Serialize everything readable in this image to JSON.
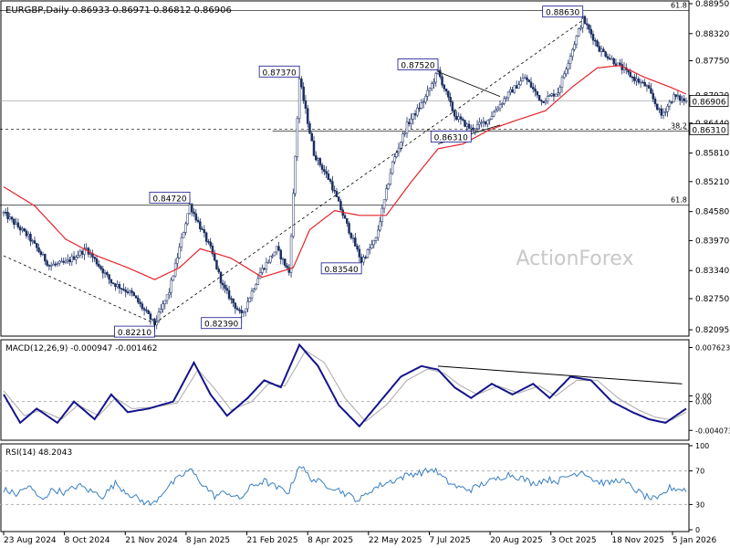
{
  "colors": {
    "background": "#ffffff",
    "frame": "#000000",
    "candle": "#1c2f63",
    "ma": "#e3242b",
    "macd": "#14148c",
    "signal": "#a9a9a9",
    "rsi": "#3a7fc1",
    "grid": "#b0b0b0",
    "label_bg": "#ffffff",
    "watermark": "#c8c8c8"
  },
  "chart_data": [
    {
      "type": "candlestick",
      "panel": "price",
      "header": "EURGBP,Daily  0.86933 0.86971 0.86812 0.86906",
      "watermark": "ActionForex",
      "ylim": [
        0.8202,
        0.8895
      ],
      "y_ticks": [
        "0.88950",
        "0.88320",
        "0.87750",
        "0.87020",
        "0.86440",
        "0.85810",
        "0.85210",
        "0.84580",
        "0.83970",
        "0.83340",
        "0.82750",
        "0.82095"
      ],
      "x_ticks": [
        "23 Aug 2024",
        "8 Oct 2024",
        "21 Nov 2024",
        "8 Jan 2025",
        "21 Feb 2025",
        "8 Apr 2025",
        "22 May 2025",
        "7 Jul 2025",
        "20 Aug 2025",
        "3 Oct 2025",
        "18 Nov 2025",
        "5 Jan 2026"
      ],
      "current_price_tag": "0.86906",
      "current_price": 0.86906,
      "level_tag": "0.86310",
      "level_price": 0.8631,
      "fib_levels": [
        {
          "label": "61.8",
          "price": 0.8881
        },
        {
          "label": "38.2",
          "price": 0.8627
        },
        {
          "label": "61.8",
          "price": 0.8472
        }
      ],
      "annotations": [
        {
          "text": "0.82210",
          "bar": 73,
          "price": 0.8221
        },
        {
          "text": "0.84720",
          "bar": 90,
          "price": 0.8472
        },
        {
          "text": "0.82390",
          "bar": 115,
          "price": 0.8239
        },
        {
          "text": "0.87370",
          "bar": 143,
          "price": 0.8737
        },
        {
          "text": "0.83540",
          "bar": 173,
          "price": 0.8354
        },
        {
          "text": "0.87520",
          "bar": 210,
          "price": 0.8752
        },
        {
          "text": "0.86310",
          "bar": 226,
          "price": 0.8631
        },
        {
          "text": "0.88630",
          "bar": 280,
          "price": 0.8863
        }
      ],
      "price_path": [
        [
          0,
          0.8455
        ],
        [
          12,
          0.8405
        ],
        [
          22,
          0.8345
        ],
        [
          30,
          0.835
        ],
        [
          40,
          0.838
        ],
        [
          52,
          0.831
        ],
        [
          62,
          0.8285
        ],
        [
          73,
          0.8221
        ],
        [
          80,
          0.829
        ],
        [
          90,
          0.8472
        ],
        [
          100,
          0.838
        ],
        [
          106,
          0.83
        ],
        [
          115,
          0.8239
        ],
        [
          124,
          0.833
        ],
        [
          132,
          0.838
        ],
        [
          138,
          0.833
        ],
        [
          143,
          0.8737
        ],
        [
          150,
          0.858
        ],
        [
          158,
          0.852
        ],
        [
          165,
          0.844
        ],
        [
          173,
          0.8354
        ],
        [
          180,
          0.84
        ],
        [
          188,
          0.856
        ],
        [
          195,
          0.864
        ],
        [
          203,
          0.869
        ],
        [
          210,
          0.8752
        ],
        [
          218,
          0.866
        ],
        [
          226,
          0.8631
        ],
        [
          234,
          0.865
        ],
        [
          243,
          0.87
        ],
        [
          252,
          0.874
        ],
        [
          260,
          0.869
        ],
        [
          268,
          0.871
        ],
        [
          275,
          0.88
        ],
        [
          280,
          0.8863
        ],
        [
          288,
          0.88
        ],
        [
          296,
          0.877
        ],
        [
          304,
          0.874
        ],
        [
          311,
          0.872
        ],
        [
          318,
          0.866
        ],
        [
          324,
          0.87
        ],
        [
          330,
          0.869
        ]
      ],
      "ma_path": [
        [
          0,
          0.851
        ],
        [
          15,
          0.847
        ],
        [
          30,
          0.84
        ],
        [
          45,
          0.8365
        ],
        [
          60,
          0.834
        ],
        [
          73,
          0.8315
        ],
        [
          85,
          0.834
        ],
        [
          95,
          0.838
        ],
        [
          110,
          0.836
        ],
        [
          125,
          0.832
        ],
        [
          140,
          0.834
        ],
        [
          148,
          0.842
        ],
        [
          160,
          0.846
        ],
        [
          172,
          0.845
        ],
        [
          185,
          0.845
        ],
        [
          197,
          0.852
        ],
        [
          210,
          0.859
        ],
        [
          222,
          0.86
        ],
        [
          235,
          0.863
        ],
        [
          248,
          0.865
        ],
        [
          262,
          0.867
        ],
        [
          275,
          0.872
        ],
        [
          287,
          0.876
        ],
        [
          298,
          0.8765
        ],
        [
          310,
          0.874
        ],
        [
          322,
          0.872
        ],
        [
          330,
          0.8705
        ]
      ],
      "trendlines": [
        {
          "from": [
            0,
            0.8365
          ],
          "to": [
            73,
            0.8223
          ]
        },
        {
          "from": [
            73,
            0.8223
          ],
          "to": [
            280,
            0.886
          ]
        },
        {
          "from": [
            210,
            0.8752
          ],
          "to": [
            240,
            0.87
          ]
        },
        {
          "from": [
            210,
            0.86
          ],
          "to": [
            240,
            0.864
          ]
        }
      ]
    },
    {
      "type": "line",
      "panel": "macd",
      "title": "MACD(12,26,9) -0.000947 -0.001462",
      "ylim": [
        -0.0052,
        0.0082
      ],
      "y_ticks": [
        "0.007623",
        "0.00",
        "0.00",
        "-0.004073"
      ],
      "zero": 0.0,
      "macd_path": [
        [
          0,
          0.001
        ],
        [
          8,
          -0.003
        ],
        [
          16,
          -0.001
        ],
        [
          26,
          -0.003
        ],
        [
          34,
          0.0
        ],
        [
          44,
          -0.0025
        ],
        [
          52,
          0.001
        ],
        [
          60,
          -0.0015
        ],
        [
          70,
          -0.001
        ],
        [
          82,
          0.0
        ],
        [
          92,
          0.0055
        ],
        [
          100,
          0.001
        ],
        [
          108,
          -0.002
        ],
        [
          118,
          0.0005
        ],
        [
          126,
          0.003
        ],
        [
          134,
          0.002
        ],
        [
          143,
          0.008
        ],
        [
          152,
          0.005
        ],
        [
          162,
          -0.0005
        ],
        [
          172,
          -0.0035
        ],
        [
          182,
          0.0
        ],
        [
          192,
          0.0035
        ],
        [
          202,
          0.005
        ],
        [
          210,
          0.0045
        ],
        [
          218,
          0.002
        ],
        [
          226,
          0.0005
        ],
        [
          236,
          0.0025
        ],
        [
          246,
          0.001
        ],
        [
          256,
          0.0025
        ],
        [
          264,
          0.0005
        ],
        [
          274,
          0.0035
        ],
        [
          284,
          0.003
        ],
        [
          294,
          0.0
        ],
        [
          304,
          -0.0015
        ],
        [
          312,
          -0.0025
        ],
        [
          320,
          -0.003
        ],
        [
          330,
          -0.001
        ]
      ],
      "signal_path": [
        [
          0,
          0.0015
        ],
        [
          10,
          -0.002
        ],
        [
          18,
          -0.0012
        ],
        [
          28,
          -0.0025
        ],
        [
          36,
          -0.0005
        ],
        [
          46,
          -0.002
        ],
        [
          54,
          0.0005
        ],
        [
          62,
          -0.001
        ],
        [
          72,
          -0.0008
        ],
        [
          84,
          -0.0002
        ],
        [
          94,
          0.0045
        ],
        [
          102,
          0.0018
        ],
        [
          110,
          -0.0012
        ],
        [
          120,
          0.0
        ],
        [
          128,
          0.0025
        ],
        [
          136,
          0.0022
        ],
        [
          146,
          0.0072
        ],
        [
          155,
          0.0055
        ],
        [
          165,
          0.0005
        ],
        [
          175,
          -0.0028
        ],
        [
          185,
          -0.0005
        ],
        [
          195,
          0.003
        ],
        [
          205,
          0.0046
        ],
        [
          213,
          0.004
        ],
        [
          221,
          0.0022
        ],
        [
          229,
          0.001
        ],
        [
          239,
          0.0022
        ],
        [
          249,
          0.0012
        ],
        [
          259,
          0.0022
        ],
        [
          267,
          0.0008
        ],
        [
          277,
          0.003
        ],
        [
          287,
          0.003
        ],
        [
          297,
          0.0005
        ],
        [
          307,
          -0.0012
        ],
        [
          315,
          -0.0022
        ],
        [
          323,
          -0.0026
        ],
        [
          330,
          -0.0015
        ]
      ],
      "divergence_line": {
        "from": [
          210,
          0.005
        ],
        "to": [
          328,
          0.0025
        ]
      }
    },
    {
      "type": "line",
      "panel": "rsi",
      "title": "RSI(14) 48.2043",
      "ylim": [
        0,
        100
      ],
      "y_ticks": [
        "100",
        "70",
        "30",
        "0"
      ],
      "levels": [
        70,
        30
      ],
      "rsi_path": [
        [
          0,
          48
        ],
        [
          6,
          42
        ],
        [
          12,
          52
        ],
        [
          18,
          36
        ],
        [
          24,
          48
        ],
        [
          30,
          44
        ],
        [
          36,
          53
        ],
        [
          42,
          46
        ],
        [
          48,
          40
        ],
        [
          54,
          55
        ],
        [
          60,
          44
        ],
        [
          66,
          35
        ],
        [
          72,
          30
        ],
        [
          78,
          48
        ],
        [
          84,
          60
        ],
        [
          90,
          72
        ],
        [
          96,
          55
        ],
        [
          102,
          40
        ],
        [
          108,
          45
        ],
        [
          114,
          36
        ],
        [
          120,
          52
        ],
        [
          126,
          58
        ],
        [
          132,
          50
        ],
        [
          138,
          45
        ],
        [
          143,
          78
        ],
        [
          148,
          62
        ],
        [
          154,
          55
        ],
        [
          160,
          50
        ],
        [
          166,
          42
        ],
        [
          172,
          35
        ],
        [
          178,
          48
        ],
        [
          184,
          55
        ],
        [
          190,
          60
        ],
        [
          196,
          66
        ],
        [
          202,
          68
        ],
        [
          208,
          72
        ],
        [
          214,
          58
        ],
        [
          220,
          50
        ],
        [
          226,
          48
        ],
        [
          232,
          55
        ],
        [
          238,
          60
        ],
        [
          244,
          66
        ],
        [
          250,
          62
        ],
        [
          256,
          55
        ],
        [
          262,
          60
        ],
        [
          268,
          58
        ],
        [
          274,
          65
        ],
        [
          280,
          70
        ],
        [
          286,
          58
        ],
        [
          292,
          55
        ],
        [
          298,
          60
        ],
        [
          304,
          50
        ],
        [
          310,
          40
        ],
        [
          316,
          35
        ],
        [
          322,
          50
        ],
        [
          328,
          48
        ]
      ]
    }
  ]
}
